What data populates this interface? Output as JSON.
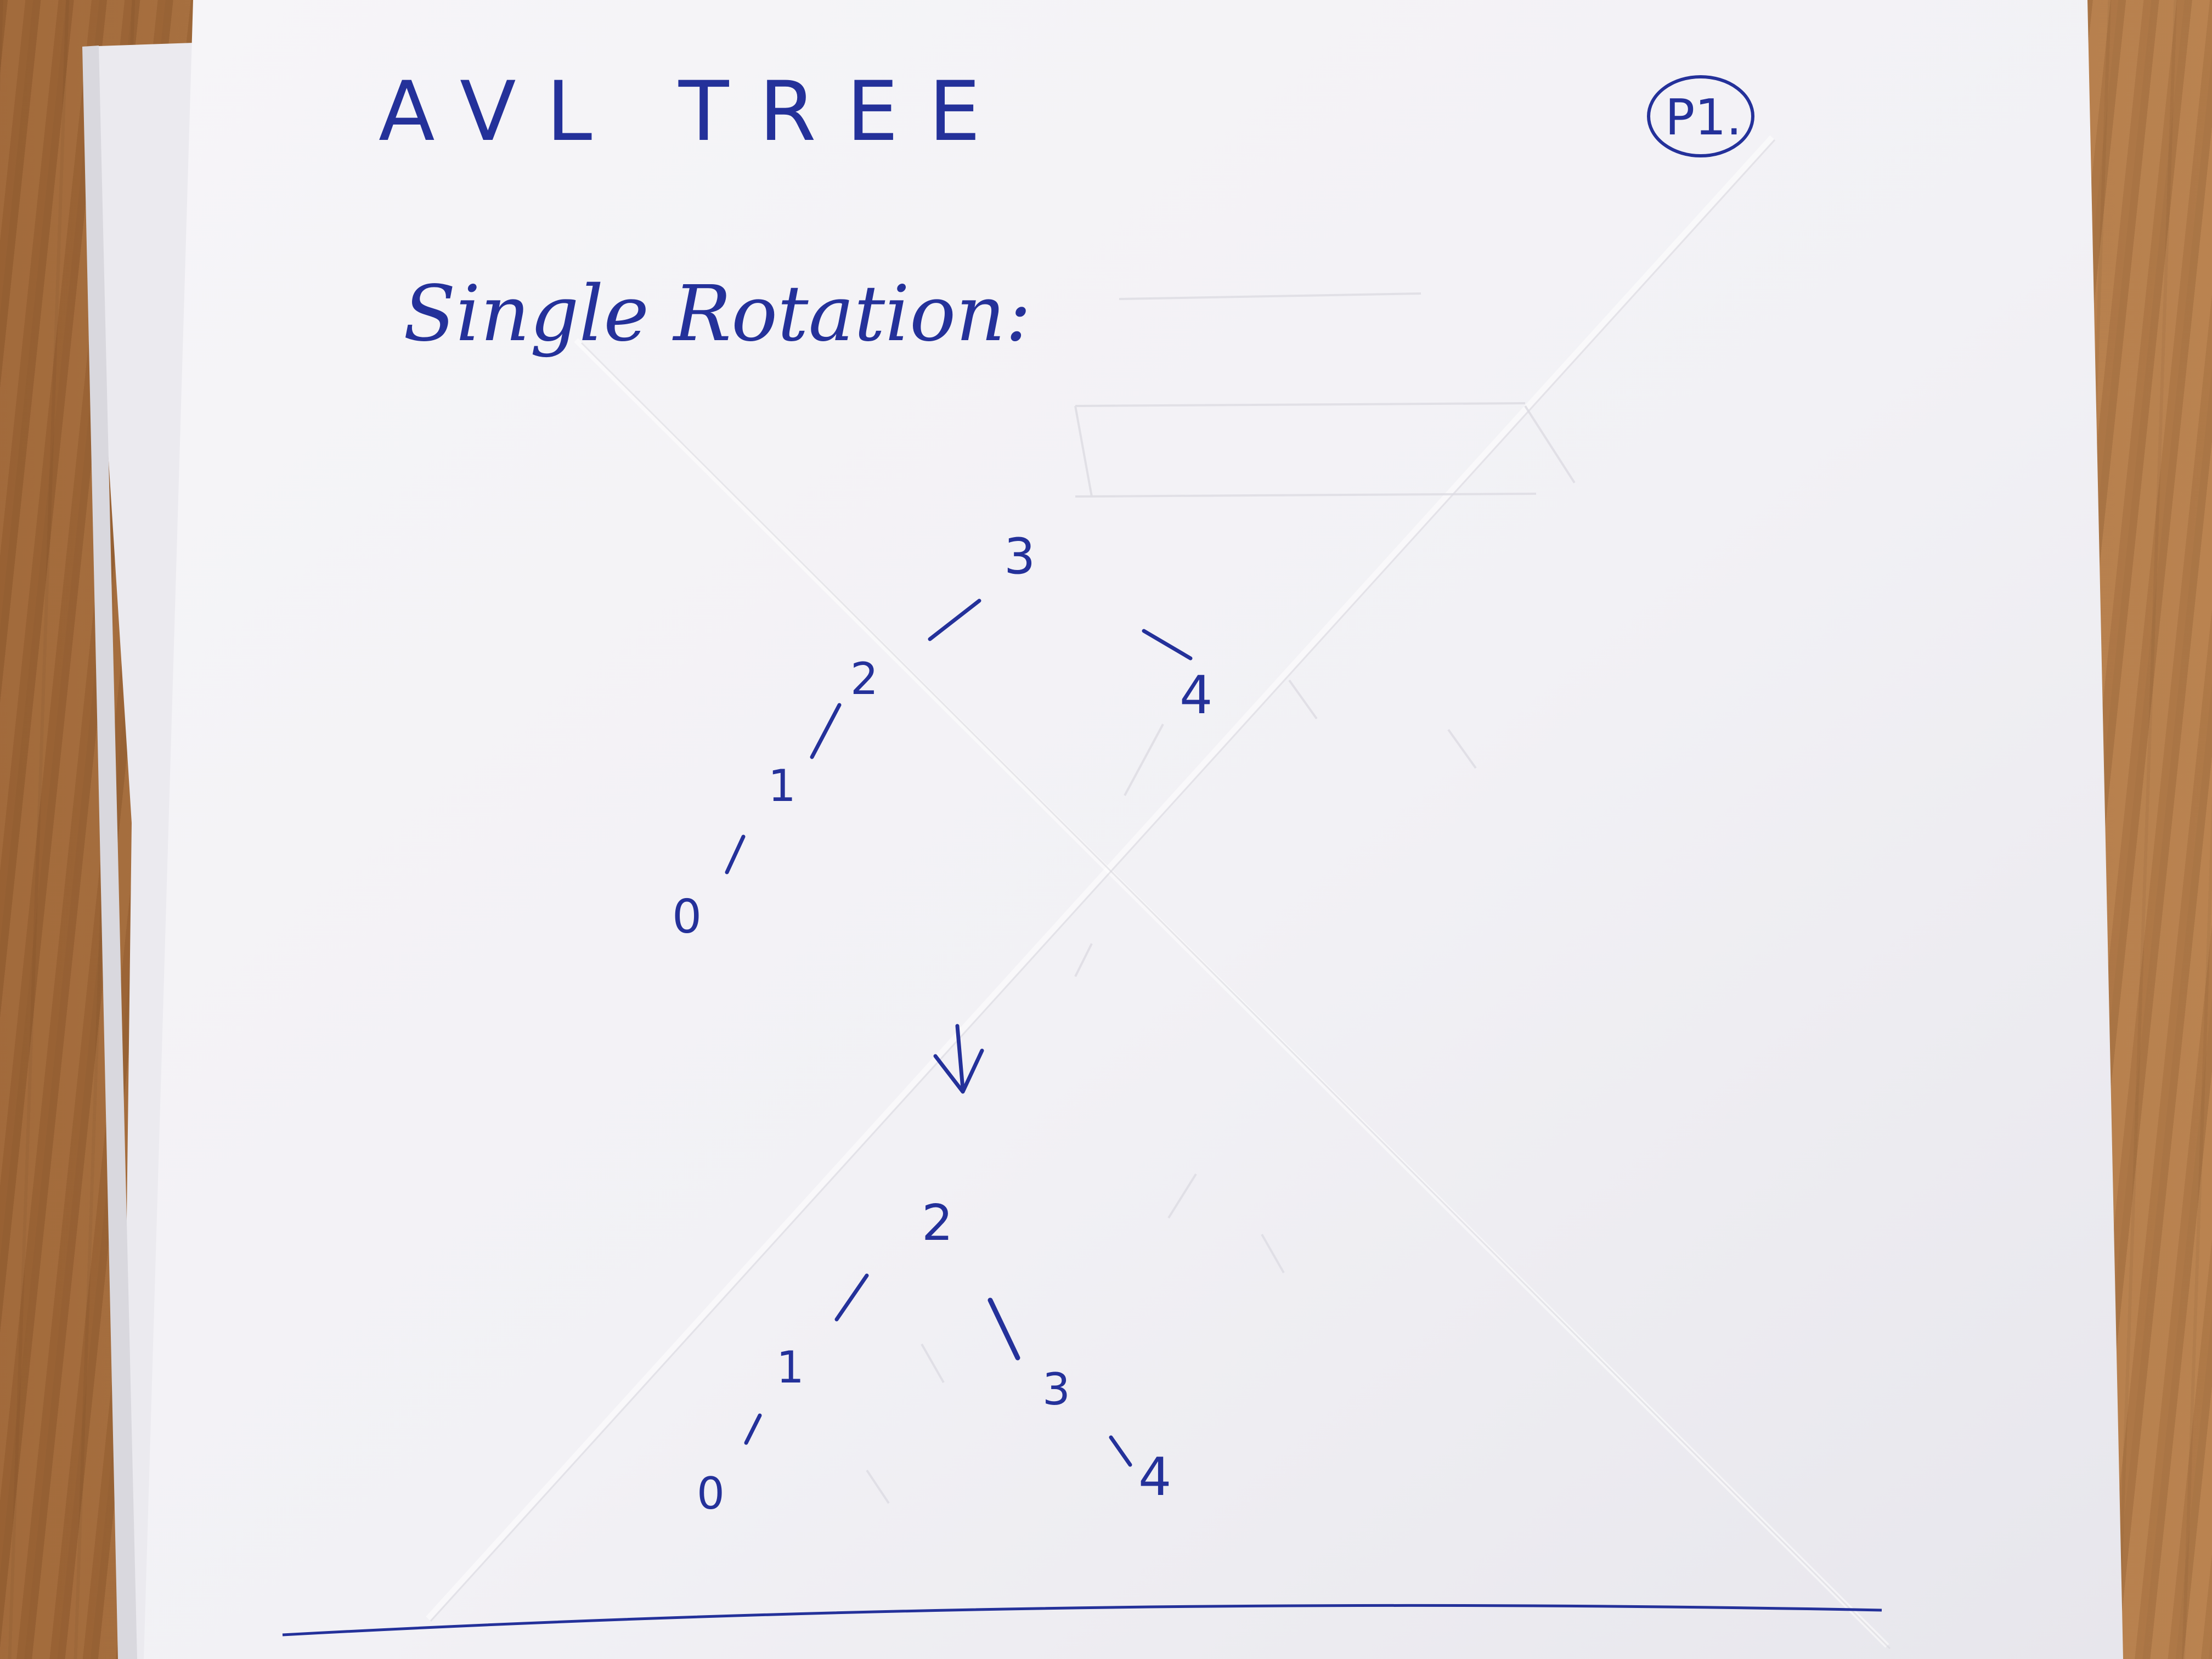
{
  "sheet": {
    "title": "AVL TREE",
    "page_label": "P1.",
    "section_heading": "Single Rotation:",
    "transition_arrow": "↓"
  },
  "before_tree": {
    "nodes": [
      "3",
      "2",
      "4",
      "1",
      "0"
    ]
  },
  "after_tree": {
    "nodes": [
      "2",
      "1",
      "3",
      "0",
      "4"
    ]
  },
  "colors": {
    "ink": "#24319a",
    "paper": "#f4f3f6",
    "desk": "#a8713f"
  }
}
